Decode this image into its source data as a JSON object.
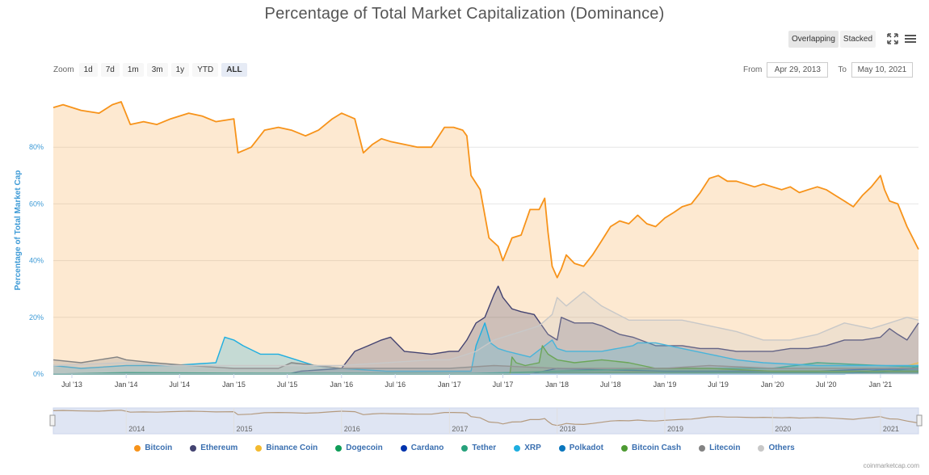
{
  "header": {
    "title": "Percentage of Total Market Capitalization (Dominance)"
  },
  "modes": {
    "overlapping": "Overlapping",
    "stacked": "Stacked",
    "active": "Overlapping"
  },
  "icons": {
    "fullscreen": "fullscreen-icon",
    "menu": "hamburger-menu-icon"
  },
  "zoom": {
    "label": "Zoom",
    "buttons": [
      "1d",
      "7d",
      "1m",
      "3m",
      "1y",
      "YTD",
      "ALL"
    ],
    "active": "ALL"
  },
  "range": {
    "from_label": "From",
    "from_value": "Apr 29, 2013",
    "to_label": "To",
    "to_value": "May 10, 2021"
  },
  "credit": "coinmarketcap.com",
  "chart_data": {
    "type": "area",
    "title": "Percentage of Total Market Capitalization (Dominance)",
    "ylabel": "Percentage of Total Market Cap",
    "xlabel": "",
    "ylim": [
      0,
      100
    ],
    "y_ticks": [
      "0%",
      "20%",
      "40%",
      "60%",
      "80%"
    ],
    "x_ticks": [
      "Jul '13",
      "Jan '14",
      "Jul '14",
      "Jan '15",
      "Jul '15",
      "Jan '16",
      "Jul '16",
      "Jan '17",
      "Jul '17",
      "Jan '18",
      "Jul '18",
      "Jan '19",
      "Jul '19",
      "Jan '20",
      "Jul '20",
      "Jan '21"
    ],
    "x_range": [
      "2013-04-29",
      "2021-05-10"
    ],
    "grid": true,
    "legend_position": "bottom",
    "navigator_labels": [
      "2014",
      "2015",
      "2016",
      "2017",
      "2018",
      "2019",
      "2020",
      "2021"
    ],
    "series": [
      {
        "name": "Bitcoin",
        "color": "#f7931a",
        "x": [
          "2013-04-29",
          "2013-06-01",
          "2013-08-01",
          "2013-10-01",
          "2013-11-15",
          "2013-12-15",
          "2014-01-15",
          "2014-03-01",
          "2014-04-15",
          "2014-06-01",
          "2014-08-01",
          "2014-09-15",
          "2014-11-01",
          "2015-01-01",
          "2015-01-15",
          "2015-03-01",
          "2015-04-15",
          "2015-06-01",
          "2015-07-15",
          "2015-09-01",
          "2015-10-15",
          "2015-12-01",
          "2016-01-01",
          "2016-02-15",
          "2016-03-15",
          "2016-04-15",
          "2016-05-15",
          "2016-06-15",
          "2016-08-01",
          "2016-09-15",
          "2016-11-01",
          "2016-12-15",
          "2017-01-15",
          "2017-02-15",
          "2017-03-01",
          "2017-03-15",
          "2017-04-15",
          "2017-05-15",
          "2017-06-15",
          "2017-07-01",
          "2017-08-01",
          "2017-09-01",
          "2017-10-01",
          "2017-11-01",
          "2017-11-20",
          "2017-12-01",
          "2017-12-15",
          "2018-01-01",
          "2018-01-15",
          "2018-02-01",
          "2018-03-01",
          "2018-04-01",
          "2018-05-01",
          "2018-06-01",
          "2018-07-01",
          "2018-08-01",
          "2018-09-01",
          "2018-10-01",
          "2018-11-01",
          "2018-12-01",
          "2019-01-01",
          "2019-02-01",
          "2019-03-01",
          "2019-04-01",
          "2019-05-01",
          "2019-06-01",
          "2019-07-01",
          "2019-08-01",
          "2019-09-01",
          "2019-10-01",
          "2019-11-01",
          "2019-12-01",
          "2020-01-01",
          "2020-02-01",
          "2020-03-01",
          "2020-04-01",
          "2020-05-01",
          "2020-06-01",
          "2020-07-01",
          "2020-08-01",
          "2020-09-01",
          "2020-10-01",
          "2020-11-01",
          "2020-12-01",
          "2021-01-01",
          "2021-01-15",
          "2021-02-01",
          "2021-03-01",
          "2021-04-01",
          "2021-05-10"
        ],
        "y": [
          94,
          95,
          93,
          92,
          95,
          96,
          88,
          89,
          88,
          90,
          92,
          91,
          89,
          90,
          78,
          80,
          86,
          87,
          86,
          84,
          86,
          90,
          92,
          90,
          78,
          81,
          83,
          82,
          81,
          80,
          80,
          87,
          87,
          86,
          84,
          70,
          65,
          48,
          45,
          40,
          48,
          49,
          58,
          58,
          62,
          50,
          38,
          34,
          37,
          42,
          39,
          38,
          42,
          47,
          52,
          54,
          53,
          56,
          53,
          52,
          55,
          57,
          59,
          60,
          64,
          69,
          70,
          68,
          68,
          67,
          66,
          67,
          66,
          65,
          66,
          64,
          65,
          66,
          65,
          63,
          61,
          59,
          63,
          66,
          70,
          65,
          61,
          60,
          52,
          44
        ]
      },
      {
        "name": "Ethereum",
        "color": "#434371",
        "x": [
          "2013-04-29",
          "2013-08-01",
          "2014-01-01",
          "2014-06-01",
          "2015-01-01",
          "2015-07-01",
          "2015-08-15",
          "2016-01-01",
          "2016-02-15",
          "2016-04-01",
          "2016-05-15",
          "2016-06-15",
          "2016-08-01",
          "2016-11-01",
          "2017-01-01",
          "2017-02-01",
          "2017-03-01",
          "2017-04-01",
          "2017-05-01",
          "2017-06-01",
          "2017-06-15",
          "2017-07-01",
          "2017-08-01",
          "2017-09-01",
          "2017-10-15",
          "2017-12-01",
          "2018-01-01",
          "2018-01-15",
          "2018-03-01",
          "2018-05-01",
          "2018-06-01",
          "2018-08-01",
          "2018-09-15",
          "2018-12-01",
          "2019-01-01",
          "2019-03-01",
          "2019-05-01",
          "2019-07-01",
          "2019-09-01",
          "2019-11-01",
          "2020-01-01",
          "2020-03-01",
          "2020-05-01",
          "2020-07-01",
          "2020-09-01",
          "2020-11-01",
          "2021-01-01",
          "2021-02-01",
          "2021-03-01",
          "2021-04-01",
          "2021-05-10"
        ],
        "y": [
          0,
          0,
          0,
          0,
          0,
          0,
          1,
          2,
          8,
          10,
          12,
          13,
          8,
          7,
          8,
          8,
          12,
          18,
          20,
          28,
          31,
          27,
          23,
          22,
          21,
          14,
          12,
          20,
          18,
          18,
          17,
          14,
          13,
          10,
          10,
          10,
          9,
          9,
          8,
          8,
          8,
          9,
          9,
          10,
          12,
          12,
          13,
          16,
          14,
          12,
          18
        ]
      },
      {
        "name": "Binance Coin",
        "color": "#f3ba2f",
        "x": [
          "2013-04-29",
          "2017-07-01",
          "2019-01-01",
          "2020-06-01",
          "2021-01-01",
          "2021-03-01",
          "2021-05-10"
        ],
        "y": [
          0,
          0,
          1,
          1,
          1,
          2,
          4
        ]
      },
      {
        "name": "Dogecoin",
        "color": "#0f9d58",
        "x": [
          "2013-04-29",
          "2014-01-01",
          "2015-01-01",
          "2017-01-01",
          "2019-01-01",
          "2021-01-01",
          "2021-02-01",
          "2021-04-15",
          "2021-05-10"
        ],
        "y": [
          0,
          0.5,
          0.3,
          0.2,
          0.3,
          0.5,
          1,
          2,
          3
        ]
      },
      {
        "name": "Cardano",
        "color": "#0033ad",
        "x": [
          "2013-04-29",
          "2017-10-01",
          "2018-01-01",
          "2018-06-01",
          "2019-01-01",
          "2020-06-01",
          "2021-02-01",
          "2021-05-10"
        ],
        "y": [
          0,
          0,
          2,
          1.5,
          1,
          1,
          2,
          2
        ]
      },
      {
        "name": "Tether",
        "color": "#26a17b",
        "x": [
          "2013-04-29",
          "2017-01-01",
          "2018-01-01",
          "2019-01-01",
          "2020-01-01",
          "2020-06-01",
          "2021-01-01",
          "2021-05-10"
        ],
        "y": [
          0,
          0,
          1,
          2,
          2,
          4,
          3,
          2.5
        ]
      },
      {
        "name": "XRP",
        "color": "#1eaee0",
        "x": [
          "2013-04-29",
          "2013-08-01",
          "2014-01-01",
          "2014-06-01",
          "2014-11-01",
          "2014-12-01",
          "2015-01-01",
          "2015-02-01",
          "2015-04-01",
          "2015-06-01",
          "2015-08-01",
          "2015-10-01",
          "2016-01-01",
          "2016-06-01",
          "2017-01-01",
          "2017-03-15",
          "2017-04-01",
          "2017-05-01",
          "2017-05-20",
          "2017-06-15",
          "2017-07-15",
          "2017-10-01",
          "2017-12-15",
          "2018-01-01",
          "2018-02-01",
          "2018-06-01",
          "2018-09-15",
          "2018-10-01",
          "2018-12-01",
          "2019-03-01",
          "2019-06-01",
          "2019-09-01",
          "2019-12-01",
          "2020-06-01",
          "2021-01-01",
          "2021-02-01",
          "2021-05-10"
        ],
        "y": [
          3,
          2,
          3,
          3,
          4,
          13,
          12,
          10,
          7,
          7,
          5,
          3,
          2,
          1,
          1,
          1,
          10,
          18,
          11,
          9,
          8,
          6,
          12,
          9,
          8,
          8,
          10,
          11,
          11,
          9,
          7,
          5,
          4,
          3,
          3,
          3,
          3
        ]
      },
      {
        "name": "Polkadot",
        "color": "#0a76bd",
        "x": [
          "2013-04-29",
          "2020-09-01",
          "2021-01-01",
          "2021-05-10"
        ],
        "y": [
          0,
          0,
          1.5,
          2
        ]
      },
      {
        "name": "Bitcoin Cash",
        "color": "#4d9a32",
        "x": [
          "2013-04-29",
          "2017-07-25",
          "2017-08-01",
          "2017-08-15",
          "2017-09-15",
          "2017-11-01",
          "2017-11-12",
          "2017-12-01",
          "2018-01-01",
          "2018-03-01",
          "2018-06-01",
          "2018-09-01",
          "2018-12-01",
          "2019-06-01",
          "2020-01-01",
          "2021-05-10"
        ],
        "y": [
          0,
          0,
          6,
          4,
          3,
          4,
          10,
          7,
          5,
          4,
          5,
          4,
          2,
          2,
          1,
          1
        ]
      },
      {
        "name": "Litecoin",
        "color": "#838383",
        "x": [
          "2013-04-29",
          "2013-08-01",
          "2013-12-01",
          "2014-01-01",
          "2014-04-01",
          "2014-08-01",
          "2015-01-01",
          "2015-06-01",
          "2015-07-15",
          "2016-01-01",
          "2017-01-01",
          "2017-06-01",
          "2018-01-01",
          "2019-01-01",
          "2019-06-01",
          "2020-01-01",
          "2021-05-10"
        ],
        "y": [
          5,
          4,
          6,
          5,
          4,
          3,
          2,
          2,
          4,
          2,
          2,
          3,
          2,
          2,
          3,
          2,
          2
        ]
      },
      {
        "name": "Others",
        "color": "#c8c8c8",
        "x": [
          "2013-04-29",
          "2014-01-01",
          "2014-06-01",
          "2015-01-01",
          "2015-06-01",
          "2016-01-01",
          "2016-06-01",
          "2016-11-01",
          "2017-01-01",
          "2017-04-01",
          "2017-06-01",
          "2017-09-01",
          "2017-11-01",
          "2017-12-15",
          "2018-01-01",
          "2018-02-01",
          "2018-04-01",
          "2018-06-01",
          "2018-09-01",
          "2018-12-01",
          "2019-03-01",
          "2019-06-01",
          "2019-09-01",
          "2019-12-01",
          "2020-03-01",
          "2020-06-01",
          "2020-09-01",
          "2020-12-01",
          "2021-02-01",
          "2021-04-01",
          "2021-05-10"
        ],
        "y": [
          3,
          4,
          3,
          3,
          3,
          3,
          4,
          5,
          5,
          8,
          12,
          15,
          17,
          21,
          27,
          24,
          29,
          24,
          19,
          19,
          19,
          17,
          15,
          12,
          12,
          14,
          18,
          16,
          18,
          20,
          19
        ]
      }
    ]
  }
}
